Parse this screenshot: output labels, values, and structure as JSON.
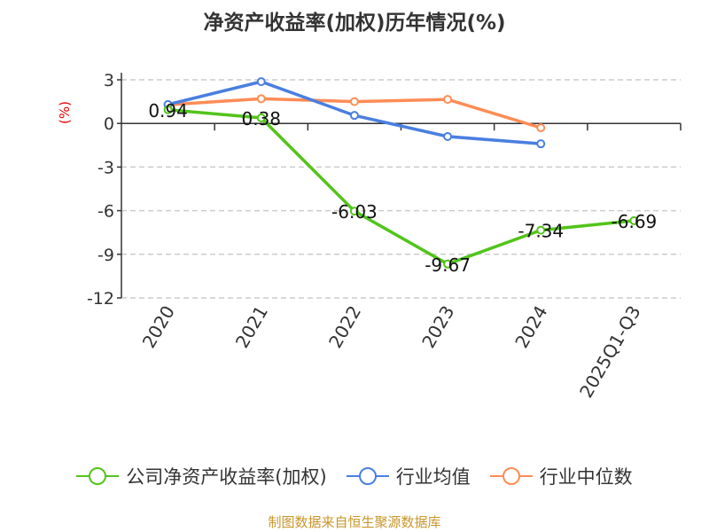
{
  "chart_data": {
    "type": "line",
    "title": "净资产收益率(加权)历年情况(%)",
    "ylabel": "(%)",
    "categories": [
      "2020",
      "2021",
      "2022",
      "2023",
      "2024",
      "2025Q1-Q3"
    ],
    "ylim": [
      -12,
      3
    ],
    "yticks": [
      3,
      0,
      -3,
      -6,
      -9,
      -12
    ],
    "grid": true,
    "legend_position": "bottom",
    "series": [
      {
        "name": "公司净资产收益率(加权)",
        "color": "#52c41a",
        "values": [
          0.94,
          0.38,
          -6.03,
          -9.67,
          -7.34,
          -6.69
        ],
        "labels": [
          "0.94",
          "0.38",
          "-6.03",
          "-9.67",
          "-7.34",
          "-6.69"
        ]
      },
      {
        "name": "行业均值",
        "color": "#4a7fe0",
        "values": [
          1.3,
          2.87,
          0.55,
          -0.9,
          -1.4,
          null
        ]
      },
      {
        "name": "行业中位数",
        "color": "#ff8c55",
        "values": [
          1.28,
          1.7,
          1.5,
          1.65,
          -0.3,
          null
        ]
      }
    ]
  },
  "footer": "制图数据来自恒生聚源数据库"
}
